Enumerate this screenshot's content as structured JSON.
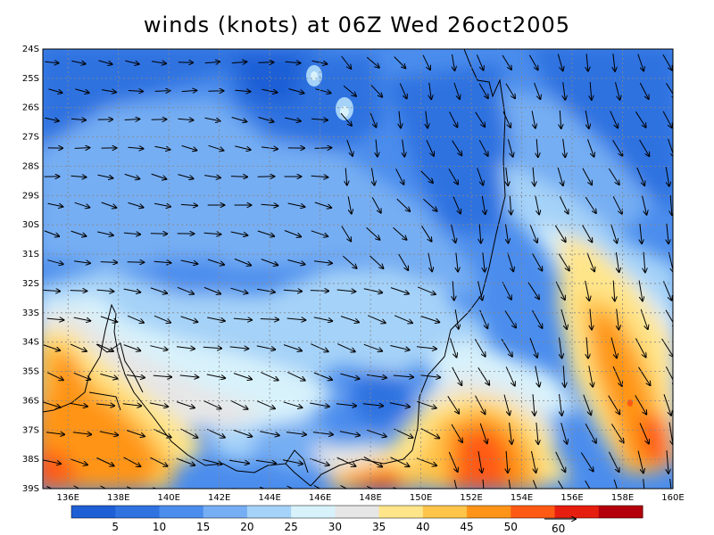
{
  "title": "winds (knots) at 06Z Wed 26oct2005",
  "lat_ticks": [
    "24S",
    "25S",
    "26S",
    "27S",
    "28S",
    "29S",
    "30S",
    "31S",
    "32S",
    "33S",
    "34S",
    "35S",
    "36S",
    "37S",
    "38S",
    "39S"
  ],
  "lon_ticks": [
    "136E",
    "138E",
    "140E",
    "142E",
    "144E",
    "146E",
    "148E",
    "150E",
    "152E",
    "154E",
    "156E",
    "158E",
    "160E"
  ],
  "lon_range": [
    135,
    160
  ],
  "lat_range": [
    -24,
    -39
  ],
  "colorbar": {
    "levels": [
      "5",
      "10",
      "15",
      "20",
      "25",
      "30",
      "35",
      "40",
      "45",
      "50"
    ],
    "colors": [
      "#1f5fd6",
      "#2f72e0",
      "#4b8ded",
      "#76aef3",
      "#a5d2f8",
      "#d8f2fb",
      "#e6e6e6",
      "#ffe58a",
      "#ffc44a",
      "#ff9419",
      "#ff5a14",
      "#e61e0f",
      "#b4000a"
    ]
  },
  "reference_vector": {
    "label": "60"
  }
}
